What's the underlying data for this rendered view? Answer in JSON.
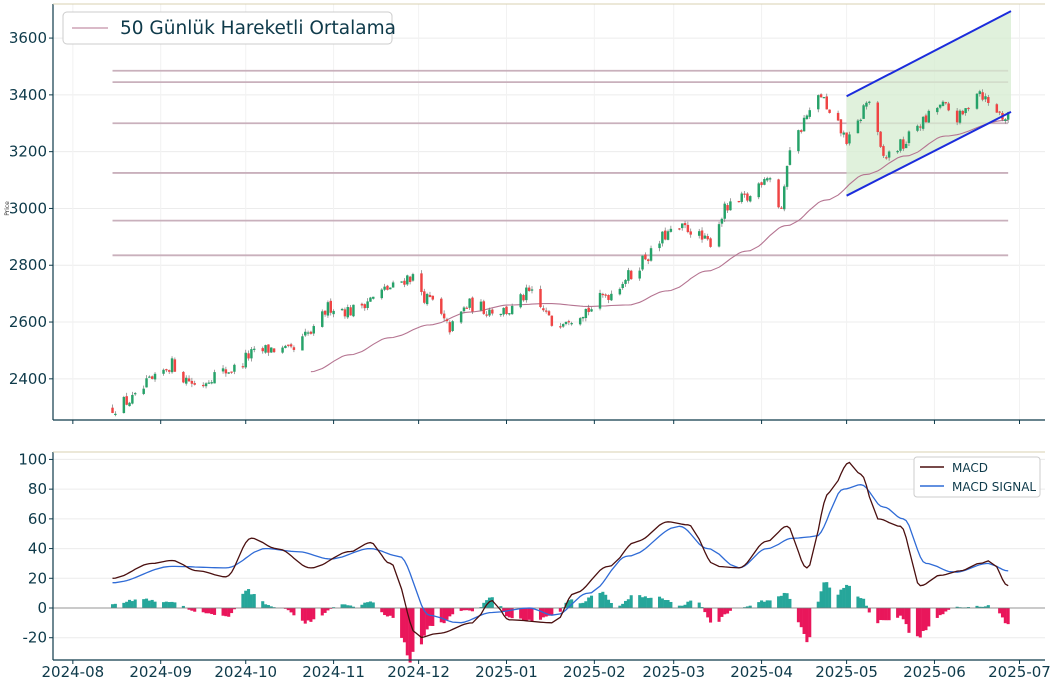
{
  "chart_data": [
    {
      "type": "candlestick",
      "ylabel": "Price",
      "legend": {
        "position": "top-left",
        "entries": [
          "50 Günlük Hareketli Ortalama"
        ]
      },
      "ylim": [
        2255,
        3720
      ],
      "yticks": [
        2400,
        2600,
        2800,
        3000,
        3200,
        3400,
        3600
      ],
      "grid": true,
      "horizontal_levels": [
        3485,
        3445,
        3300,
        3125,
        2957,
        2835
      ],
      "channel": {
        "start": "2025-05-01",
        "end": "2025-06-28",
        "upper": [
          3395,
          3695
        ],
        "lower": [
          3045,
          3340
        ]
      },
      "ohlc_anchors": [
        [
          "2024-08-15",
          2300
        ],
        [
          "2024-08-22",
          2325
        ],
        [
          "2024-08-29",
          2390
        ],
        [
          "2024-09-05",
          2450
        ],
        [
          "2024-09-10",
          2400
        ],
        [
          "2024-09-14",
          2375
        ],
        [
          "2024-09-20",
          2415
        ],
        [
          "2024-09-27",
          2435
        ],
        [
          "2024-10-03",
          2485
        ],
        [
          "2024-10-10",
          2505
        ],
        [
          "2024-10-17",
          2495
        ],
        [
          "2024-10-24",
          2560
        ],
        [
          "2024-10-31",
          2655
        ],
        [
          "2024-11-07",
          2640
        ],
        [
          "2024-11-14",
          2680
        ],
        [
          "2024-11-21",
          2720
        ],
        [
          "2024-11-28",
          2760
        ],
        [
          "2024-12-05",
          2675
        ],
        [
          "2024-12-12",
          2580
        ],
        [
          "2024-12-19",
          2660
        ],
        [
          "2024-12-26",
          2645
        ],
        [
          "2025-01-02",
          2640
        ],
        [
          "2025-01-09",
          2700
        ],
        [
          "2025-01-14",
          2640
        ],
        [
          "2025-01-17",
          2595
        ],
        [
          "2025-01-23",
          2620
        ],
        [
          "2025-01-30",
          2645
        ],
        [
          "2025-02-06",
          2700
        ],
        [
          "2025-02-13",
          2760
        ],
        [
          "2025-02-20",
          2835
        ],
        [
          "2025-02-27",
          2910
        ],
        [
          "2025-03-06",
          2930
        ],
        [
          "2025-03-13",
          2880
        ],
        [
          "2025-03-20",
          3000
        ],
        [
          "2025-03-27",
          3035
        ],
        [
          "2025-04-03",
          3120
        ],
        [
          "2025-04-08",
          3000
        ],
        [
          "2025-04-11",
          3220
        ],
        [
          "2025-04-18",
          3330
        ],
        [
          "2025-04-22",
          3400
        ],
        [
          "2025-04-25",
          3320
        ],
        [
          "2025-05-02",
          3240
        ],
        [
          "2025-05-09",
          3380
        ],
        [
          "2025-05-14",
          3180
        ],
        [
          "2025-05-20",
          3220
        ],
        [
          "2025-05-27",
          3300
        ],
        [
          "2025-06-03",
          3360
        ],
        [
          "2025-06-10",
          3320
        ],
        [
          "2025-06-16",
          3420
        ],
        [
          "2025-06-22",
          3350
        ],
        [
          "2025-06-26",
          3320
        ]
      ],
      "ma50_anchors": [
        [
          "2024-10-24",
          2425
        ],
        [
          "2024-11-07",
          2485
        ],
        [
          "2024-11-21",
          2545
        ],
        [
          "2024-12-05",
          2590
        ],
        [
          "2024-12-19",
          2635
        ],
        [
          "2025-01-02",
          2660
        ],
        [
          "2025-01-16",
          2665
        ],
        [
          "2025-01-30",
          2655
        ],
        [
          "2025-02-13",
          2660
        ],
        [
          "2025-02-27",
          2710
        ],
        [
          "2025-03-13",
          2780
        ],
        [
          "2025-03-27",
          2850
        ],
        [
          "2025-04-10",
          2940
        ],
        [
          "2025-04-24",
          3030
        ],
        [
          "2025-05-08",
          3120
        ],
        [
          "2025-05-22",
          3185
        ],
        [
          "2025-06-05",
          3255
        ],
        [
          "2025-06-26",
          3310
        ]
      ],
      "colors": {
        "up": "#26a269",
        "down": "#ef4444",
        "ma": "#b57491",
        "levels": "#c9b0bc",
        "channel_line": "#1b2cdc",
        "channel_fill": "#d5ecd0"
      }
    },
    {
      "type": "line+bar",
      "ylim": [
        -35,
        105
      ],
      "yticks": [
        -20,
        0,
        20,
        40,
        60,
        80,
        100
      ],
      "grid": true,
      "legend": {
        "position": "top-right",
        "entries": [
          "MACD",
          "MACD SIGNAL"
        ]
      },
      "macd_anchors": [
        [
          "2024-08-15",
          20
        ],
        [
          "2024-08-29",
          30
        ],
        [
          "2024-09-05",
          32
        ],
        [
          "2024-09-14",
          25
        ],
        [
          "2024-09-24",
          21
        ],
        [
          "2024-10-03",
          47
        ],
        [
          "2024-10-12",
          40
        ],
        [
          "2024-10-24",
          27
        ],
        [
          "2024-11-07",
          38
        ],
        [
          "2024-11-14",
          44
        ],
        [
          "2024-11-21",
          30
        ],
        [
          "2024-12-01",
          -20
        ],
        [
          "2024-12-08",
          -17
        ],
        [
          "2024-12-20",
          -10
        ],
        [
          "2024-12-27",
          5
        ],
        [
          "2025-01-02",
          -8
        ],
        [
          "2025-01-18",
          -10
        ],
        [
          "2025-01-25",
          10
        ],
        [
          "2025-02-06",
          28
        ],
        [
          "2025-02-16",
          45
        ],
        [
          "2025-02-27",
          58
        ],
        [
          "2025-03-06",
          56
        ],
        [
          "2025-03-16",
          28
        ],
        [
          "2025-03-24",
          27
        ],
        [
          "2025-04-03",
          45
        ],
        [
          "2025-04-10",
          55
        ],
        [
          "2025-04-17",
          27
        ],
        [
          "2025-04-25",
          78
        ],
        [
          "2025-05-02",
          98
        ],
        [
          "2025-05-06",
          90
        ],
        [
          "2025-05-12",
          60
        ],
        [
          "2025-05-20",
          55
        ],
        [
          "2025-05-27",
          15
        ],
        [
          "2025-06-03",
          22
        ],
        [
          "2025-06-10",
          25
        ],
        [
          "2025-06-17",
          30
        ],
        [
          "2025-06-21",
          32
        ],
        [
          "2025-06-27",
          15
        ]
      ],
      "signal_anchors": [
        [
          "2024-08-15",
          17
        ],
        [
          "2024-09-05",
          28
        ],
        [
          "2024-09-24",
          27
        ],
        [
          "2024-10-08",
          40
        ],
        [
          "2024-10-19",
          38
        ],
        [
          "2024-10-31",
          33
        ],
        [
          "2024-11-14",
          40
        ],
        [
          "2024-11-24",
          35
        ],
        [
          "2024-12-05",
          -5
        ],
        [
          "2024-12-15",
          -10
        ],
        [
          "2024-12-27",
          -3
        ],
        [
          "2025-01-09",
          0
        ],
        [
          "2025-01-18",
          -5
        ],
        [
          "2025-01-30",
          10
        ],
        [
          "2025-02-13",
          35
        ],
        [
          "2025-03-03",
          55
        ],
        [
          "2025-03-13",
          40
        ],
        [
          "2025-03-24",
          27
        ],
        [
          "2025-04-03",
          40
        ],
        [
          "2025-04-12",
          47
        ],
        [
          "2025-04-20",
          48
        ],
        [
          "2025-04-30",
          80
        ],
        [
          "2025-05-06",
          83
        ],
        [
          "2025-05-14",
          68
        ],
        [
          "2025-05-21",
          60
        ],
        [
          "2025-05-29",
          30
        ],
        [
          "2025-06-08",
          24
        ],
        [
          "2025-06-20",
          30
        ],
        [
          "2025-06-27",
          25
        ]
      ],
      "colors": {
        "macd": "#4a0f0f",
        "signal": "#2f6bd6",
        "hist_pos": "#26a69a",
        "hist_neg": "#e9165b"
      }
    }
  ],
  "x_axis": {
    "ticks": [
      "2024-08",
      "2024-09",
      "2024-10",
      "2024-11",
      "2024-12",
      "2025-01",
      "2025-02",
      "2025-03",
      "2025-04",
      "2025-05",
      "2025-06",
      "2025-07"
    ],
    "range": [
      "2024-08-15",
      "2025-06-27"
    ]
  }
}
